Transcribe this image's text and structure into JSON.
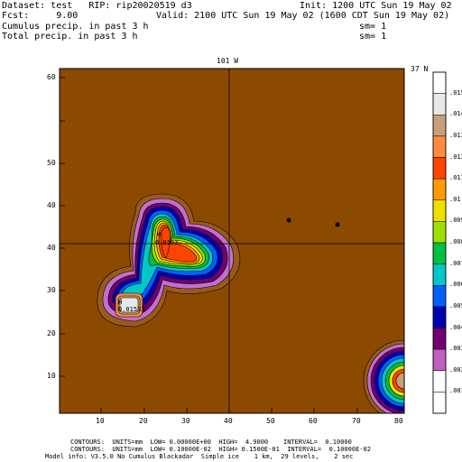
{
  "header": {
    "dataset": "Dataset: test   RIP: rip20020519 d3",
    "init": "Init: 1200 UTC Sun 19 May 02",
    "fcst": "Fcst:     9.00",
    "valid": "Valid: 2100 UTC Sun 19 May 02 (1600 CDT Sun 19 May 02)",
    "field1": "Cumulus precip. in past 3 h",
    "sm1": "sm= 1",
    "field2": "Total precip. in past 3 h",
    "sm2": "sm= 1"
  },
  "plot": {
    "top_label": "101 W",
    "right_top_label": "37 N",
    "y_ticks": [
      "60",
      "50",
      "40",
      "30",
      "20",
      "10"
    ],
    "x_ticks": [
      "10",
      "20",
      "30",
      "40",
      "50",
      "60",
      "70",
      "80"
    ],
    "highs": [
      {
        "label": "H",
        "value": "0.0167"
      },
      {
        "label": "H",
        "value": "0.01533"
      }
    ],
    "background_color": "#8b4a00"
  },
  "legend": {
    "levels": [
      {
        "label": ".015",
        "color": "#ffffff"
      },
      {
        "label": ".014",
        "color": "#e8e8e8"
      },
      {
        "label": ".013",
        "color": "#c8a078"
      },
      {
        "label": ".012",
        "color": "#ff8c3c"
      },
      {
        "label": ".011",
        "color": "#ff4400"
      },
      {
        "label": ".01",
        "color": "#ff9a00"
      },
      {
        "label": ".009",
        "color": "#f0e000"
      },
      {
        "label": ".008",
        "color": "#a0e000"
      },
      {
        "label": ".007",
        "color": "#00c040"
      },
      {
        "label": ".006",
        "color": "#00c8c8"
      },
      {
        "label": ".005",
        "color": "#0060ff"
      },
      {
        "label": ".004",
        "color": "#0000b0"
      },
      {
        "label": ".003",
        "color": "#700070"
      },
      {
        "label": ".002",
        "color": "#c060c0"
      },
      {
        "label": ".001",
        "color": "#ffffff"
      },
      {
        "label": "",
        "color": "#ffffff"
      }
    ]
  },
  "footer": {
    "line1": "CONTOURS:  UNITS=mm  LOW= 0.00000E+00  HIGH=  4.9000    INTERVAL=  0.10000",
    "line2": "CONTOURS:  UNITS=mm  LOW= 0.10000E-02  HIGH= 0.1500E-01  INTERVAL=  0.10000E-02",
    "line3": "Model info: V3.5.0 No Cumulus Blackadar  Simple ice    1 km,  29 levels,    2 sec"
  }
}
